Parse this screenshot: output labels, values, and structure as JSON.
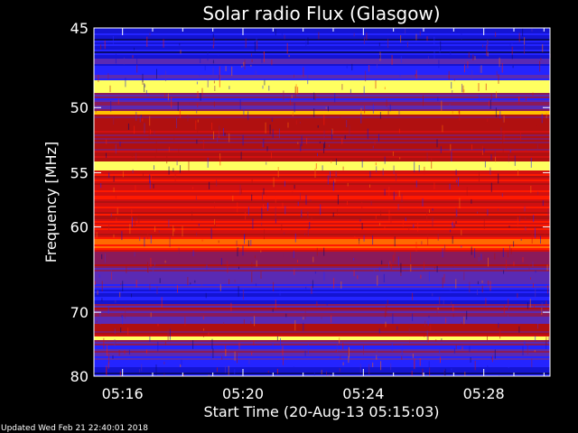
{
  "footer": {
    "updated": "Updated Wed Feb 21 22:40:01 2018"
  },
  "colors": {
    "background": "#000000",
    "frame": "#ffffff",
    "text": "#ffffff",
    "palette": [
      "#0a0a6e",
      "#1414d2",
      "#2424ff",
      "#5a2ab4",
      "#8a1a5a",
      "#b01010",
      "#d01010",
      "#ff1a00",
      "#ff6a00",
      "#ffc000",
      "#ffff60"
    ]
  },
  "chart_data": {
    "type": "heatmap",
    "title": "Solar radio Flux (Glasgow)",
    "xlabel": "Start Time (20-Aug-13 05:15:03)",
    "ylabel": "Frequency [MHz]",
    "x_tick_labels": [
      "05:16",
      "05:20",
      "05:24",
      "05:28"
    ],
    "x_tick_minutes": [
      16,
      20,
      24,
      28
    ],
    "xlim_minutes": [
      15.05,
      30.2
    ],
    "y_tick_labels": [
      "45",
      "50",
      "55",
      "60",
      "70",
      "80"
    ],
    "y_tick_values": [
      45,
      50,
      55,
      60,
      70,
      80
    ],
    "ylim": [
      45,
      80
    ],
    "y_scale": "reciprocal",
    "grid": false,
    "intensity_bands": [
      {
        "from": 45,
        "to": 46.5,
        "level": 1
      },
      {
        "from": 46.5,
        "to": 48.2,
        "level": 2
      },
      {
        "from": 48.2,
        "to": 49.0,
        "level": 10
      },
      {
        "from": 49.0,
        "to": 50.2,
        "level": 3
      },
      {
        "from": 50.2,
        "to": 50.5,
        "level": 9
      },
      {
        "from": 50.5,
        "to": 54.0,
        "level": 5
      },
      {
        "from": 54.0,
        "to": 54.8,
        "level": 10
      },
      {
        "from": 54.8,
        "to": 57.0,
        "level": 6
      },
      {
        "from": 57.0,
        "to": 61.0,
        "level": 6
      },
      {
        "from": 61.0,
        "to": 62.5,
        "level": 7
      },
      {
        "from": 62.5,
        "to": 65.0,
        "level": 4
      },
      {
        "from": 65.0,
        "to": 67.0,
        "level": 3
      },
      {
        "from": 67.0,
        "to": 68.8,
        "level": 1
      },
      {
        "from": 68.8,
        "to": 72.0,
        "level": 4
      },
      {
        "from": 72.0,
        "to": 73.5,
        "level": 5
      },
      {
        "from": 73.5,
        "to": 74.0,
        "level": 10
      },
      {
        "from": 74.0,
        "to": 76.5,
        "level": 3
      },
      {
        "from": 76.5,
        "to": 78.5,
        "level": 2
      },
      {
        "from": 78.5,
        "to": 80.0,
        "level": 1
      }
    ]
  }
}
